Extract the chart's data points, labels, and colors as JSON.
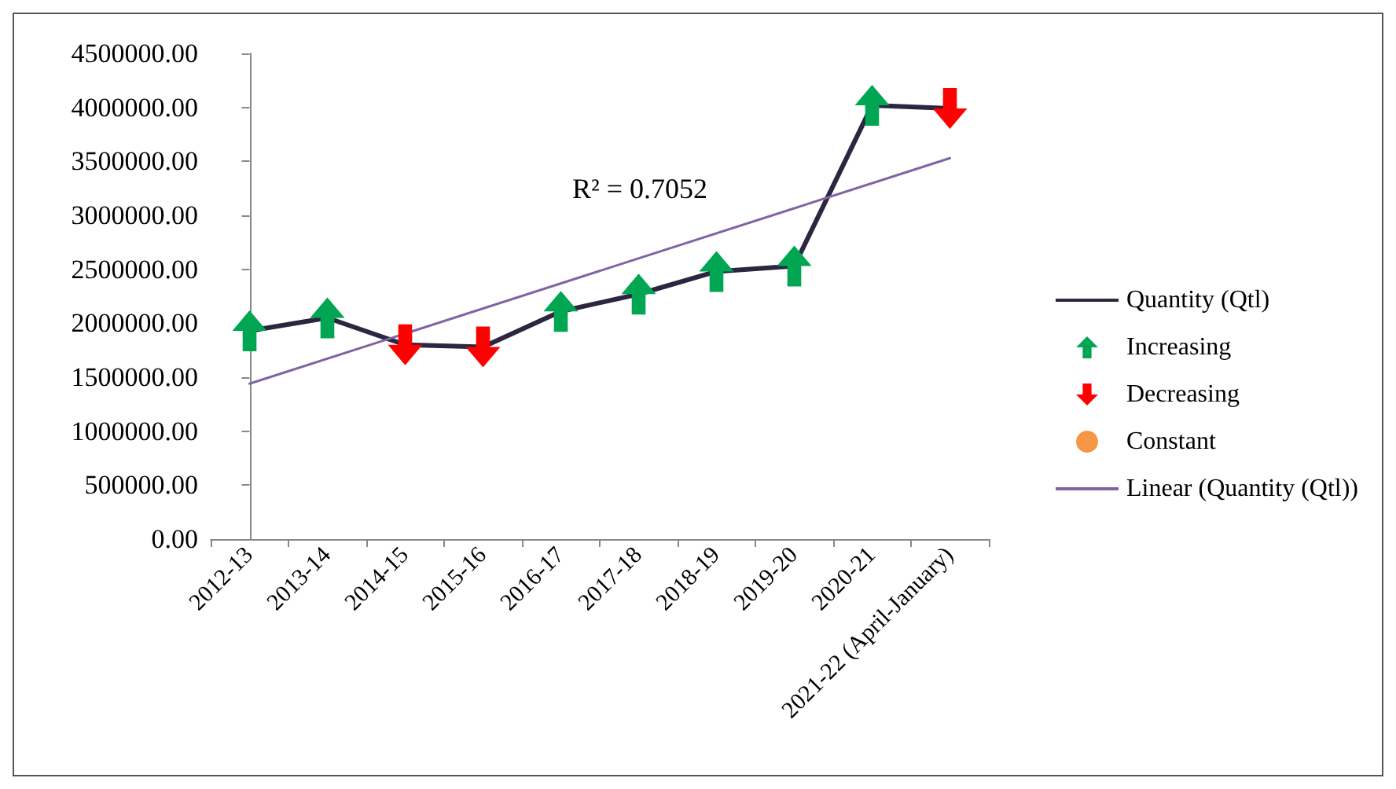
{
  "chart_data": {
    "type": "line",
    "categories": [
      "2012-13",
      "2013-14",
      "2014-15",
      "2015-16",
      "2016-17",
      "2017-18",
      "2018-19",
      "2019-20",
      "2020-21",
      "2021-22 (April-January)"
    ],
    "series": [
      {
        "name": "Quantity (Qtl)",
        "color": "#2e2541",
        "values": [
          1930000,
          2050000,
          1800000,
          1780000,
          2110000,
          2270000,
          2480000,
          2530000,
          4020000,
          3990000
        ]
      },
      {
        "name": "Increasing",
        "type": "scatter",
        "color": "#00a651",
        "values": [
          1930000,
          2050000,
          null,
          null,
          2110000,
          2270000,
          2480000,
          2530000,
          4020000,
          null
        ]
      },
      {
        "name": "Decreasing",
        "type": "scatter",
        "color": "#ff0000",
        "values": [
          null,
          null,
          1800000,
          1780000,
          null,
          null,
          null,
          null,
          null,
          3990000
        ]
      },
      {
        "name": "Constant",
        "type": "scatter",
        "marker": "circle",
        "color": "#f79646",
        "values": [
          null,
          null,
          null,
          null,
          null,
          null,
          null,
          null,
          null,
          null
        ]
      },
      {
        "name": "Linear (Quantity (Qtl))",
        "type": "line",
        "color": "#8064a2",
        "x": [
          "2012-13",
          "2021-22 (April-January)"
        ],
        "values": [
          1440000,
          3530000
        ]
      }
    ],
    "ylim": [
      0,
      4500000
    ],
    "yticks": [
      {
        "value": 0,
        "label": "0.00"
      },
      {
        "value": 500000,
        "label": "500000.00"
      },
      {
        "value": 1000000,
        "label": "1000000.00"
      },
      {
        "value": 1500000,
        "label": "1500000.00"
      },
      {
        "value": 2000000,
        "label": "2000000.00"
      },
      {
        "value": 2500000,
        "label": "2500000.00"
      },
      {
        "value": 3000000,
        "label": "3000000.00"
      },
      {
        "value": 3500000,
        "label": "3500000.00"
      },
      {
        "value": 4000000,
        "label": "4000000.00"
      },
      {
        "value": 4500000,
        "label": "4500000.00"
      }
    ],
    "annotations": [
      "R² = 0.7052"
    ],
    "grid": false,
    "legend": "right",
    "marker": "none"
  }
}
